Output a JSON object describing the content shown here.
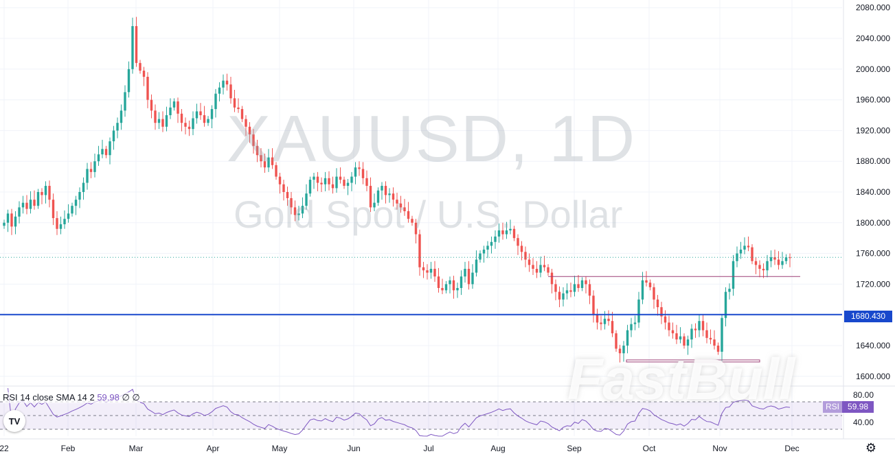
{
  "chart_data": {
    "type": "candlestick",
    "symbol_watermark": "XAUUSD, 1D",
    "description_watermark": "Gold Spot / U.S. Dollar",
    "brand_watermark": "FastBull",
    "y_axis": {
      "min": 1590,
      "max": 2090,
      "ticks": [
        "2080.000",
        "2040.000",
        "2000.000",
        "1960.000",
        "1920.000",
        "1880.000",
        "1840.000",
        "1800.000",
        "1760.000",
        "1720.000",
        "1680.000",
        "1640.000",
        "1600.000"
      ],
      "position": "right"
    },
    "x_axis": {
      "ticks": [
        "22",
        "Feb",
        "Mar",
        "Apr",
        "May",
        "Jun",
        "Jul",
        "Aug",
        "Sep",
        "Oct",
        "Nov",
        "Dec"
      ]
    },
    "closes": [
      1800,
      1812,
      1795,
      1808,
      1820,
      1826,
      1818,
      1830,
      1822,
      1840,
      1836,
      1848,
      1830,
      1806,
      1792,
      1798,
      1805,
      1812,
      1822,
      1830,
      1840,
      1852,
      1870,
      1866,
      1880,
      1889,
      1896,
      1888,
      1906,
      1920,
      1930,
      1946,
      1970,
      2000,
      2056,
      2008,
      1998,
      1990,
      1960,
      1946,
      1930,
      1935,
      1925,
      1940,
      1950,
      1958,
      1942,
      1930,
      1925,
      1922,
      1936,
      1945,
      1940,
      1930,
      1935,
      1948,
      1968,
      1976,
      1985,
      1980,
      1962,
      1950,
      1948,
      1935,
      1925,
      1915,
      1900,
      1888,
      1880,
      1872,
      1885,
      1875,
      1860,
      1850,
      1840,
      1832,
      1820,
      1810,
      1812,
      1822,
      1838,
      1856,
      1860,
      1852,
      1850,
      1858,
      1850,
      1845,
      1860,
      1856,
      1848,
      1852,
      1860,
      1872,
      1870,
      1858,
      1848,
      1820,
      1826,
      1842,
      1848,
      1836,
      1838,
      1830,
      1825,
      1820,
      1815,
      1805,
      1800,
      1785,
      1742,
      1738,
      1735,
      1740,
      1730,
      1715,
      1712,
      1720,
      1725,
      1712,
      1715,
      1730,
      1740,
      1720,
      1735,
      1752,
      1760,
      1765,
      1770,
      1775,
      1782,
      1790,
      1785,
      1790,
      1792,
      1780,
      1770,
      1762,
      1752,
      1745,
      1740,
      1735,
      1745,
      1742,
      1735,
      1720,
      1710,
      1700,
      1708,
      1712,
      1710,
      1720,
      1715,
      1725,
      1720,
      1705,
      1680,
      1670,
      1668,
      1675,
      1672,
      1656,
      1636,
      1630,
      1640,
      1660,
      1668,
      1670,
      1700,
      1725,
      1722,
      1716,
      1700,
      1690,
      1678,
      1670,
      1660,
      1656,
      1648,
      1652,
      1640,
      1648,
      1662,
      1660,
      1672,
      1660,
      1650,
      1648,
      1640,
      1632,
      1676,
      1710,
      1714,
      1750,
      1760,
      1765,
      1770,
      1768,
      1750,
      1745,
      1740,
      1738,
      1750,
      1755,
      1752,
      1745,
      1750,
      1755,
      1754
    ],
    "last_price": "1754.000",
    "current_price_line": 1755,
    "horizontal_lines": [
      {
        "label": "1680.430",
        "value": 1680.43,
        "color": "#1848cc"
      },
      {
        "value": 1730,
        "color": "#9c3e76"
      },
      {
        "value": 1620,
        "color": "#9c3e76"
      }
    ],
    "up_color": "#26a69a",
    "down_color": "#ef5350",
    "rsi": {
      "legend_name": "RSI 14 close SMA 14 2",
      "legend_value": "59.98",
      "legend_extra": "∅ ∅",
      "badge_name": "RSI",
      "badge_value": "59.98",
      "upper_band": 70,
      "lower_band": 30,
      "axis_labels": [
        "80.00",
        "40.00"
      ],
      "color": "#7e57c2"
    }
  },
  "ui": {
    "tv_logo": "TV",
    "settings_icon": "gear-icon"
  }
}
